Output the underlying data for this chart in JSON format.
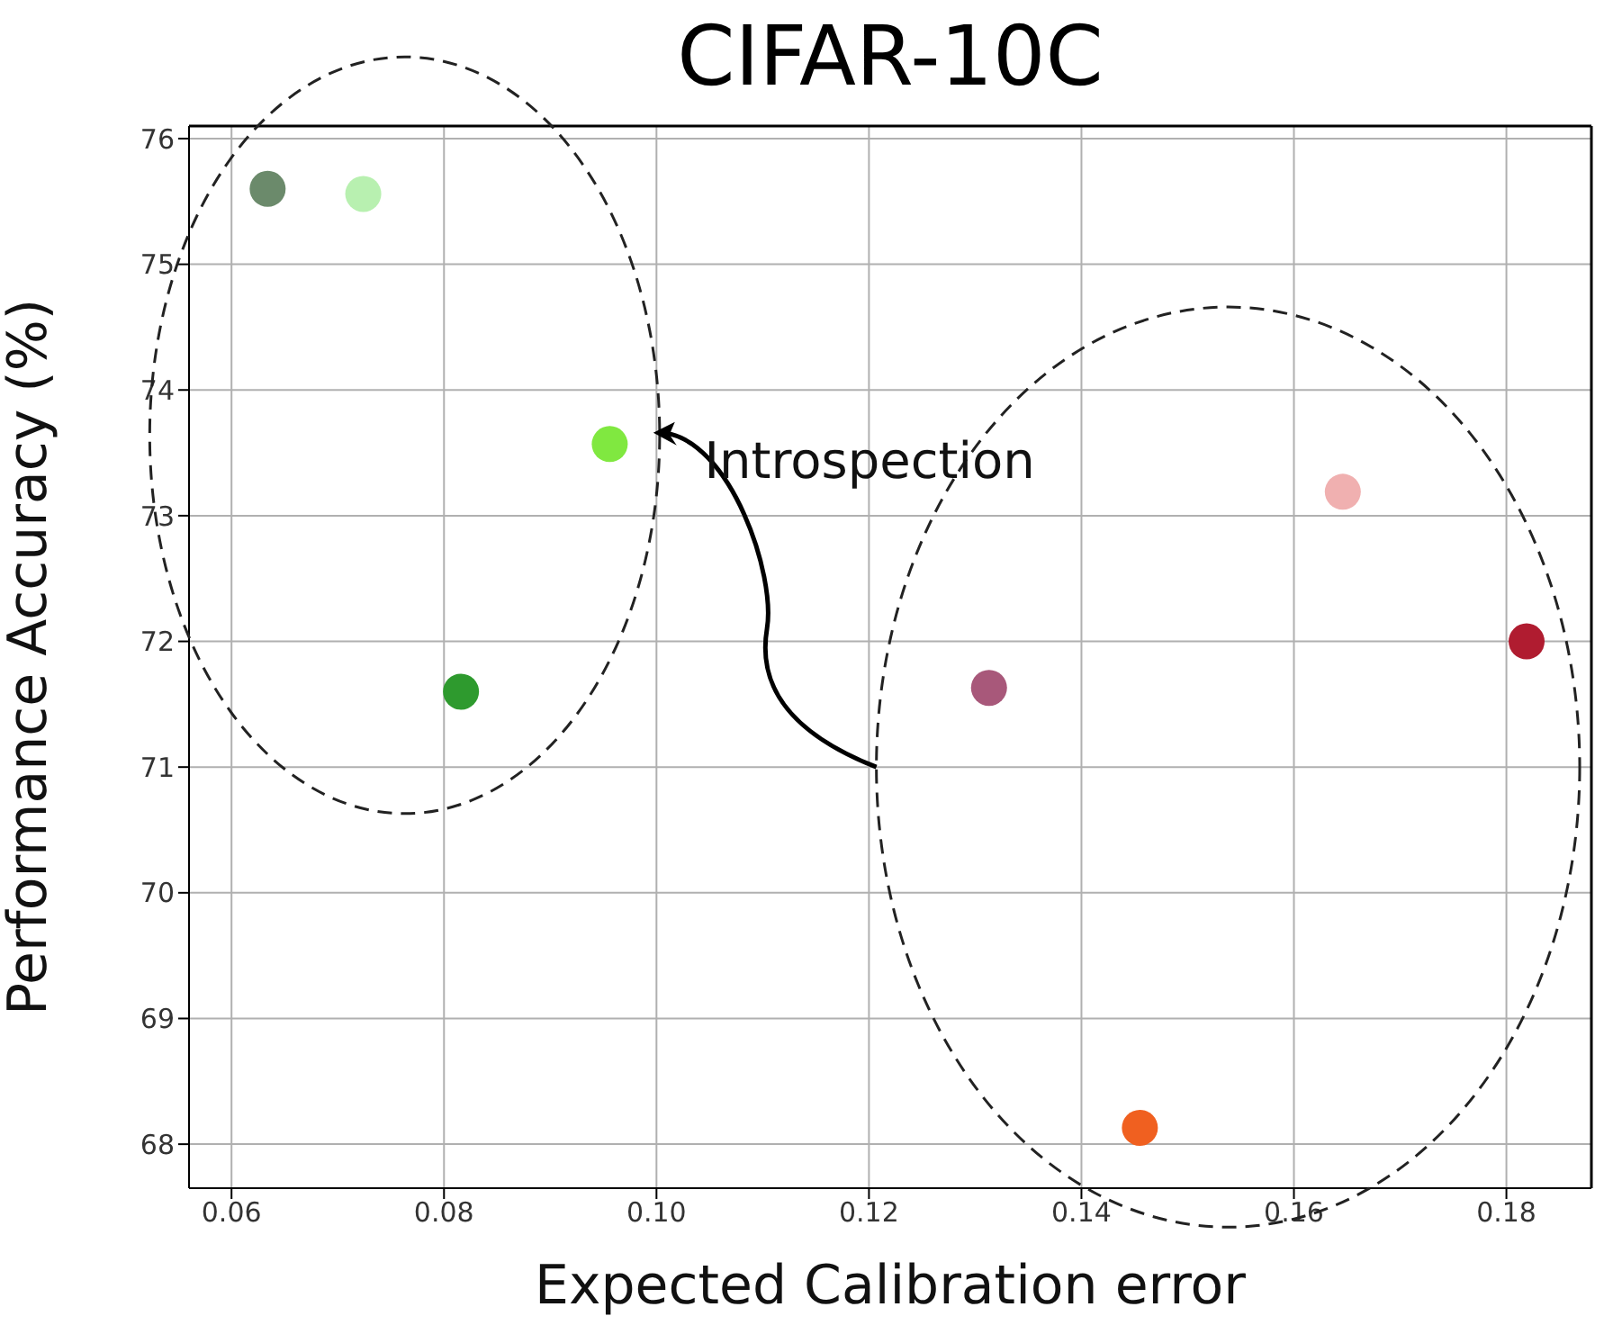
{
  "chart_data": {
    "type": "scatter",
    "title": "CIFAR-10C",
    "xlabel": "Expected Calibration error",
    "ylabel": "Performance Accuracy (%)",
    "x": [
      0.0634,
      0.0724,
      0.0956,
      0.0816,
      0.1313,
      0.1646,
      0.1819,
      0.1455
    ],
    "values": [
      75.6,
      75.56,
      73.57,
      71.6,
      71.63,
      73.19,
      72.0,
      68.13
    ],
    "colors": [
      "#6b8a6b",
      "#b8f0b0",
      "#80e840",
      "#2e9a2e",
      "#a8587a",
      "#f0b0b0",
      "#b01c30",
      "#f06020"
    ],
    "xlim": [
      0.056,
      0.188
    ],
    "xticks": [
      {
        "value": 0.06,
        "label": "0.06"
      },
      {
        "value": 0.08,
        "label": "0.08"
      },
      {
        "value": 0.1,
        "label": "0.10"
      },
      {
        "value": 0.12,
        "label": "0.12"
      },
      {
        "value": 0.14,
        "label": "0.14"
      },
      {
        "value": 0.16,
        "label": "0.16"
      },
      {
        "value": 0.18,
        "label": "0.18"
      }
    ],
    "ylim": [
      67.65,
      76.1
    ],
    "yticks": [
      68,
      69,
      70,
      71,
      72,
      73,
      74,
      75,
      76
    ],
    "grid": true,
    "marker": "circle",
    "annotations": [
      "Introspection"
    ]
  }
}
